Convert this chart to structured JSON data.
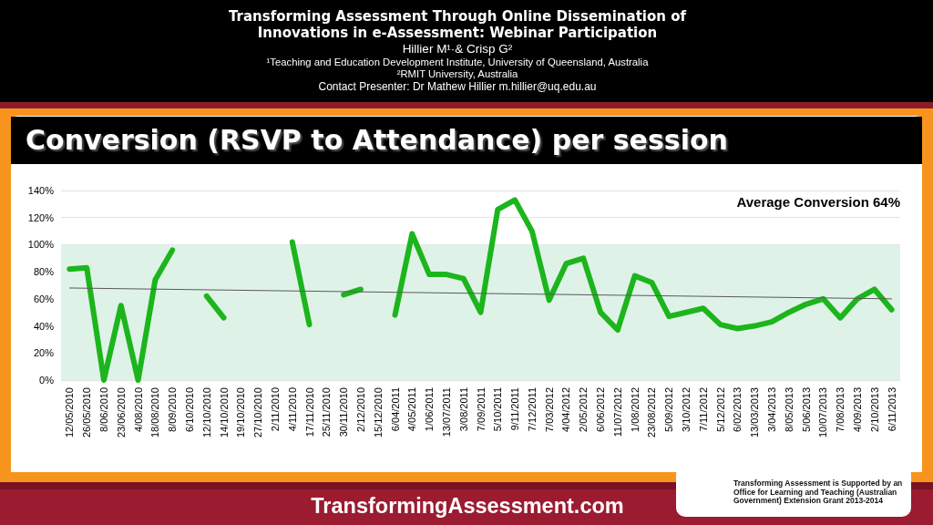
{
  "chart_data": {
    "type": "line",
    "title": "Conversion (RSVP to Attendance) per session",
    "annotations": [
      "Average Conversion 64%",
      "Transforming Assessment Through Online Dissemination of Innovations in e-Assessment: Webinar Participation",
      "Hillier M¹·& Crisp G²",
      "¹Teaching and Education Development Institute, University of Queensland, Australia",
      "²RMIT University, Australia",
      "Contact Presenter: Dr Mathew Hillier m.hillier@uq.edu.au",
      "Transforming Assessment is Supported by an Office for Learning and Teaching (Australian Government) Extension Grant 2013-2014",
      "TransformingAssessment.com"
    ],
    "categories": [
      "12/05/2010",
      "26/05/2010",
      "8/06/2010",
      "23/06/2010",
      "4/08/2010",
      "18/08/2010",
      "8/09/2010",
      "6/10/2010",
      "12/10/2010",
      "14/10/2010",
      "19/10/2010",
      "27/10/2010",
      "2/11/2010",
      "4/11/2010",
      "17/11/2010",
      "25/11/2010",
      "30/11/2010",
      "2/12/2010",
      "15/12/2010",
      "6/04/2011",
      "4/05/2011",
      "1/06/2011",
      "13/07/2011",
      "3/08/2011",
      "7/09/2011",
      "5/10/2011",
      "9/11/2011",
      "7/12/2011",
      "7/03/2012",
      "4/04/2012",
      "2/05/2012",
      "6/06/2012",
      "11/07/2012",
      "1/08/2012",
      "23/08/2012",
      "5/09/2012",
      "3/10/2012",
      "7/11/2012",
      "5/12/2012",
      "6/02/2013",
      "13/03/2013",
      "3/04/2013",
      "8/05/2013",
      "5/06/2013",
      "10/07/2013",
      "7/08/2013",
      "4/09/2013",
      "2/10/2013",
      "6/11/2013"
    ],
    "series": [
      {
        "color": "#1cb51c",
        "values": [
          82,
          83,
          0,
          55,
          0,
          74,
          96,
          null,
          62,
          46,
          null,
          null,
          null,
          102,
          41,
          null,
          63,
          67,
          null,
          48,
          108,
          78,
          78,
          75,
          50,
          126,
          133,
          110,
          59,
          86,
          90,
          50,
          37,
          77,
          72,
          47,
          50,
          53,
          41,
          38,
          40,
          43,
          50,
          56,
          60,
          46,
          60,
          67,
          52
        ]
      },
      {
        "type": "line",
        "color": "#595959",
        "x": [
          "12/05/2010",
          "6/11/2013"
        ],
        "values": [
          68,
          60
        ]
      }
    ],
    "ylim": [
      0,
      140
    ],
    "yticks": [
      {
        "value": 0,
        "label": "0%"
      },
      {
        "value": 20,
        "label": "20%"
      },
      {
        "value": 40,
        "label": "40%"
      },
      {
        "value": 60,
        "label": "60%"
      },
      {
        "value": 80,
        "label": "80%"
      },
      {
        "value": 100,
        "label": "100%"
      },
      {
        "value": 120,
        "label": "120%"
      },
      {
        "value": 140,
        "label": "140%"
      }
    ],
    "bands": [
      {
        "axis": "y",
        "from": 0,
        "to": 100,
        "color": "#dff2e8"
      }
    ],
    "grid": "y",
    "marker": "none",
    "line_style": "solid"
  }
}
